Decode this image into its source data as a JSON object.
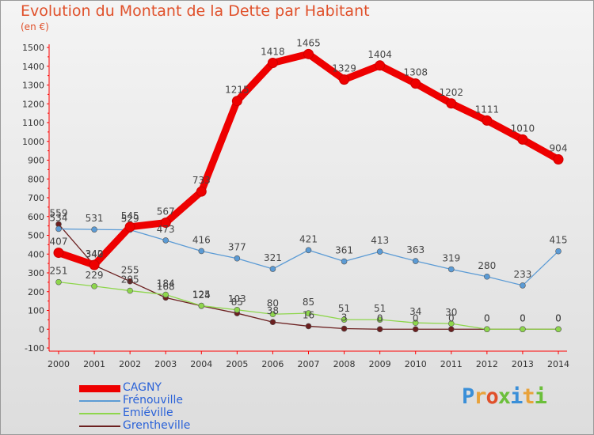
{
  "title": "Evolution du Montant de la Dette par Habitant",
  "unit": "(en €)",
  "logo": {
    "text": "Proxiti",
    "letters": [
      "P",
      "r",
      "o",
      "x",
      "i",
      "t",
      "i"
    ],
    "colors": [
      "#3a8fd8",
      "#e8a23a",
      "#e0502a",
      "#6bbf3a",
      "#3a8fd8",
      "#e8a23a",
      "#6bbf3a"
    ]
  },
  "chart_data": {
    "type": "line",
    "title": "Evolution du Montant de la Dette par Habitant",
    "ylabel": "(en €)",
    "xlabel": "",
    "ylim": [
      -100,
      1500
    ],
    "yticks": [
      -100,
      0,
      100,
      200,
      300,
      400,
      500,
      600,
      700,
      800,
      900,
      1000,
      1100,
      1200,
      1300,
      1400,
      1500
    ],
    "categories": [
      "2000",
      "2001",
      "2002",
      "2003",
      "2004",
      "2005",
      "2006",
      "2007",
      "2008",
      "2009",
      "2010",
      "2011",
      "2012",
      "2013",
      "2014"
    ],
    "grid": false,
    "legend": "bottom-left",
    "series": [
      {
        "name": "CAGNY",
        "color": "#ee0000",
        "values": [
          407,
          342,
          545,
          567,
          733,
          1215,
          1418,
          1465,
          1329,
          1404,
          1308,
          1202,
          1111,
          1010,
          904
        ],
        "labels": [
          "407",
          "342",
          "545",
          "567",
          "733",
          "1215",
          "1418",
          "1465",
          "1329",
          "1404",
          "1308",
          "1202",
          "1111",
          "1010",
          "904"
        ]
      },
      {
        "name": "Frénouville",
        "color": "#5b9bd5",
        "values": [
          534,
          531,
          529,
          473,
          416,
          377,
          321,
          421,
          361,
          413,
          363,
          319,
          280,
          233,
          415
        ],
        "labels": [
          "534",
          "531",
          "529",
          "473",
          "416",
          "377",
          "321",
          "421",
          "361",
          "413",
          "363",
          "319",
          "280",
          "233",
          "415"
        ]
      },
      {
        "name": "Emiéville",
        "color": "#8ed64c",
        "values": [
          251,
          229,
          205,
          184,
          125,
          103,
          80,
          85,
          51,
          51,
          34,
          30,
          0,
          0,
          0
        ],
        "labels": [
          "251",
          "229",
          "205",
          "184",
          "125",
          "103",
          "80",
          "85",
          "51",
          "51",
          "34",
          "30",
          "0",
          "0",
          "0"
        ]
      },
      {
        "name": "Grentheville",
        "color": "#6b1f1f",
        "values": [
          559,
          340,
          255,
          168,
          124,
          85,
          38,
          16,
          3,
          0,
          0,
          0,
          0,
          0,
          0
        ],
        "labels": [
          "559",
          "340",
          "255",
          "168",
          "124",
          "85",
          "38",
          "16",
          "3",
          "0",
          "0",
          "0",
          "0",
          "0",
          "0"
        ]
      }
    ]
  }
}
